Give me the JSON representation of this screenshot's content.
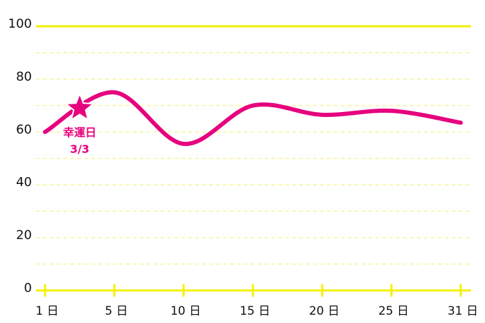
{
  "chart_data": {
    "type": "line",
    "categories": [
      "1 日",
      "5 日",
      "10 日",
      "15 日",
      "20 日",
      "25 日",
      "31 日"
    ],
    "values": [
      60,
      75,
      55.5,
      70,
      66.5,
      68,
      63.5
    ],
    "color": "#e6007e",
    "ylim": [
      0,
      100
    ],
    "yticks": [
      0,
      20,
      40,
      60,
      80,
      100
    ],
    "minor_yticks": [
      10,
      30,
      50,
      70,
      90
    ],
    "grid": true,
    "axis_color": "#f2f200",
    "annotation": {
      "text": "幸運日",
      "date": "3/3",
      "value": 69
    }
  }
}
